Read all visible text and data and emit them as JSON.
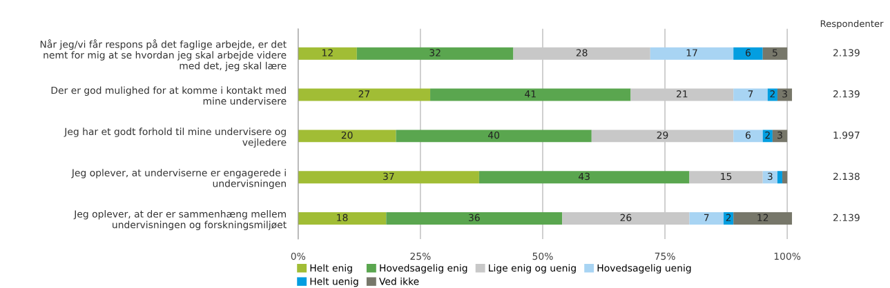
{
  "chart_data": {
    "type": "bar",
    "orientation": "horizontal",
    "stacked": true,
    "categories": [
      "Når jeg/vi får respons på det faglige arbejde, er det\nnemt for mig at se hvordan jeg skal arbejde videre\nmed det, jeg skal lære",
      "Der er god mulighed for at komme i kontakt med\nmine undervisere",
      "Jeg har et godt forhold til mine undervisere og\nvejledere",
      "Jeg oplever, at underviserne er engagerede i\nundervisningen",
      "Jeg oplever, at der er sammenhæng mellem\nundervisningen og forskningsmiljøet"
    ],
    "series": [
      {
        "name": "Helt enig",
        "color": "#a1bd35",
        "values": [
          12,
          27,
          20,
          37,
          18
        ],
        "value_labels": [
          "12",
          "27",
          "20",
          "37",
          "18"
        ]
      },
      {
        "name": "Hovedsagelig enig",
        "color": "#5aa64f",
        "values": [
          32,
          41,
          40,
          43,
          36
        ],
        "value_labels": [
          "32",
          "41",
          "40",
          "43",
          "36"
        ]
      },
      {
        "name": "Lige enig og uenig",
        "color": "#c8c8c8",
        "values": [
          28,
          21,
          29,
          15,
          26
        ],
        "value_labels": [
          "28",
          "21",
          "29",
          "15",
          "26"
        ]
      },
      {
        "name": "Hovedsagelig uenig",
        "color": "#a8d4f3",
        "values": [
          17,
          7,
          6,
          3,
          7
        ],
        "value_labels": [
          "17",
          "7",
          "6",
          "3",
          "7"
        ]
      },
      {
        "name": "Helt uenig",
        "color": "#039ee0",
        "values": [
          6,
          2,
          2,
          1,
          2
        ],
        "value_labels": [
          "6",
          "2",
          "2",
          null,
          "2"
        ]
      },
      {
        "name": "Ved ikke",
        "color": "#77776a",
        "values": [
          5,
          3,
          3,
          1,
          12
        ],
        "value_labels": [
          "5",
          "3",
          "3",
          null,
          "12"
        ]
      }
    ],
    "xlim": [
      0,
      101
    ],
    "xticks": [
      {
        "value": 0,
        "label": "0%"
      },
      {
        "value": 25,
        "label": "25%"
      },
      {
        "value": 50,
        "label": "50%"
      },
      {
        "value": 75,
        "label": "75%"
      },
      {
        "value": 100,
        "label": "100%"
      }
    ],
    "grid": "x",
    "legend": "bottom",
    "annotations": [
      "Respondenter",
      "2.139",
      "2.139",
      "1.997",
      "2.138",
      "2.139"
    ]
  }
}
